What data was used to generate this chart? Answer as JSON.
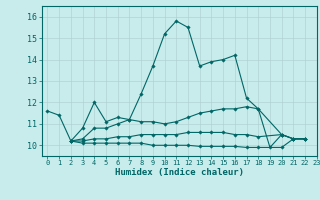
{
  "xlabel": "Humidex (Indice chaleur)",
  "background_color": "#c8ecec",
  "grid_color": "#b0d0d0",
  "line_color": "#006666",
  "xlim": [
    -0.5,
    23
  ],
  "ylim": [
    9.5,
    16.5
  ],
  "xticks": [
    0,
    1,
    2,
    3,
    4,
    5,
    6,
    7,
    8,
    9,
    10,
    11,
    12,
    13,
    14,
    15,
    16,
    17,
    18,
    19,
    20,
    21,
    22,
    23
  ],
  "yticks": [
    10,
    11,
    12,
    13,
    14,
    15,
    16
  ],
  "series": [
    [
      11.6,
      11.4,
      10.2,
      10.8,
      12.0,
      11.1,
      11.3,
      11.2,
      12.4,
      13.7,
      15.2,
      15.8,
      15.5,
      13.7,
      13.9,
      14.0,
      14.2,
      12.2,
      11.7,
      9.9,
      10.5,
      10.3,
      10.3,
      null
    ],
    [
      null,
      null,
      10.2,
      10.3,
      10.8,
      10.8,
      11.0,
      11.2,
      11.1,
      11.1,
      11.0,
      11.1,
      11.3,
      11.5,
      11.6,
      11.7,
      11.7,
      11.8,
      11.7,
      null,
      10.5,
      10.3,
      10.3,
      null
    ],
    [
      null,
      null,
      10.2,
      10.2,
      10.3,
      10.3,
      10.4,
      10.4,
      10.5,
      10.5,
      10.5,
      10.5,
      10.6,
      10.6,
      10.6,
      10.6,
      10.5,
      10.5,
      10.4,
      null,
      10.5,
      10.3,
      10.3,
      null
    ],
    [
      null,
      null,
      10.2,
      10.1,
      10.1,
      10.1,
      10.1,
      10.1,
      10.1,
      10.0,
      10.0,
      10.0,
      10.0,
      9.95,
      9.95,
      9.95,
      9.95,
      9.9,
      9.9,
      null,
      9.9,
      10.3,
      10.3,
      null
    ]
  ]
}
